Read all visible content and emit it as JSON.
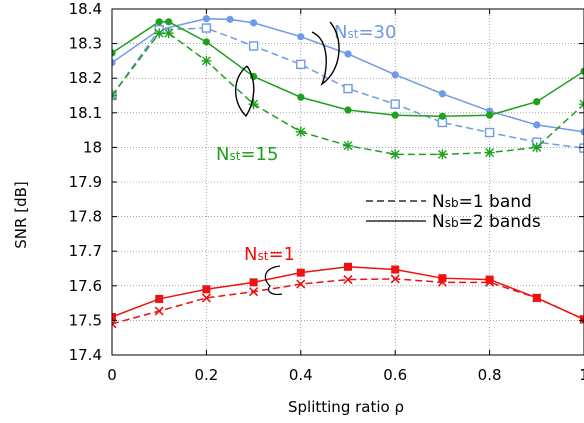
{
  "chart_data": {
    "type": "line",
    "xlabel": "Splitting ratio ρ",
    "ylabel": "SNR [dB]",
    "xlim": [
      0,
      1
    ],
    "ylim": [
      17.4,
      18.4
    ],
    "x_ticks": [
      "0",
      "0.2",
      "0.4",
      "0.6",
      "0.8",
      "1"
    ],
    "y_ticks": [
      "17.4",
      "17.5",
      "17.6",
      "17.7",
      "17.8",
      "17.9",
      "18",
      "18.1",
      "18.2",
      "18.3",
      "18.4"
    ],
    "grid": true,
    "legend_position": "middle-right",
    "legend": [
      {
        "prefix": "N",
        "sub": "sb",
        "suffix": "=1 band",
        "style": "dashed"
      },
      {
        "prefix": "N",
        "sub": "sb",
        "suffix": "=2 bands",
        "style": "solid"
      }
    ],
    "annotations": [
      {
        "prefix": "N",
        "sub": "st",
        "suffix": "=30",
        "color": "#6f9ae6"
      },
      {
        "prefix": "N",
        "sub": "st",
        "suffix": "=15",
        "color": "#1fa01f"
      },
      {
        "prefix": "N",
        "sub": "st",
        "suffix": "=1",
        "color": "#ee1111"
      }
    ],
    "series": [
      {
        "group": "Nst=30",
        "bands": 2,
        "style": "solid",
        "marker": "circle",
        "color": "#6f9ae6",
        "x": [
          0,
          0.1,
          0.2,
          0.25,
          0.3,
          0.4,
          0.5,
          0.6,
          0.7,
          0.8,
          0.9,
          1.0
        ],
        "y": [
          18.245,
          18.34,
          18.372,
          18.37,
          18.36,
          18.32,
          18.27,
          18.21,
          18.155,
          18.105,
          18.065,
          18.045
        ]
      },
      {
        "group": "Nst=30",
        "bands": 1,
        "style": "dashed",
        "marker": "square",
        "color": "#6f9ae6",
        "x": [
          0,
          0.1,
          0.2,
          0.3,
          0.4,
          0.5,
          0.6,
          0.7,
          0.8,
          0.9,
          1.0
        ],
        "y": [
          18.15,
          18.34,
          18.345,
          18.293,
          18.24,
          18.17,
          18.125,
          18.072,
          18.043,
          18.015,
          17.998
        ]
      },
      {
        "group": "Nst=15",
        "bands": 2,
        "style": "solid",
        "marker": "circle",
        "color": "#1fa01f",
        "x": [
          0,
          0.1,
          0.12,
          0.2,
          0.3,
          0.4,
          0.5,
          0.6,
          0.7,
          0.8,
          0.9,
          1.0
        ],
        "y": [
          18.273,
          18.363,
          18.363,
          18.305,
          18.205,
          18.145,
          18.108,
          18.093,
          18.09,
          18.093,
          18.132,
          18.22
        ]
      },
      {
        "group": "Nst=15",
        "bands": 1,
        "style": "dashed",
        "marker": "star",
        "color": "#1fa01f",
        "x": [
          0,
          0.1,
          0.12,
          0.2,
          0.3,
          0.4,
          0.5,
          0.6,
          0.7,
          0.8,
          0.9,
          1.0
        ],
        "y": [
          18.15,
          18.33,
          18.33,
          18.25,
          18.125,
          18.045,
          18.005,
          17.98,
          17.98,
          17.985,
          18.0,
          18.125
        ]
      },
      {
        "group": "Nst=1",
        "bands": 2,
        "style": "solid",
        "marker": "square-filled",
        "color": "#ee1111",
        "x": [
          0,
          0.1,
          0.2,
          0.3,
          0.4,
          0.5,
          0.6,
          0.7,
          0.8,
          0.9,
          1.0
        ],
        "y": [
          17.51,
          17.562,
          17.59,
          17.61,
          17.638,
          17.655,
          17.647,
          17.622,
          17.618,
          17.565,
          17.503
        ]
      },
      {
        "group": "Nst=1",
        "bands": 1,
        "style": "dashed",
        "marker": "cross",
        "color": "#ee1111",
        "x": [
          0,
          0.1,
          0.2,
          0.3,
          0.4,
          0.5,
          0.6,
          0.7,
          0.8,
          0.9,
          1.0
        ],
        "y": [
          17.49,
          17.527,
          17.565,
          17.583,
          17.605,
          17.618,
          17.62,
          17.61,
          17.61,
          17.565,
          17.503
        ]
      }
    ]
  }
}
